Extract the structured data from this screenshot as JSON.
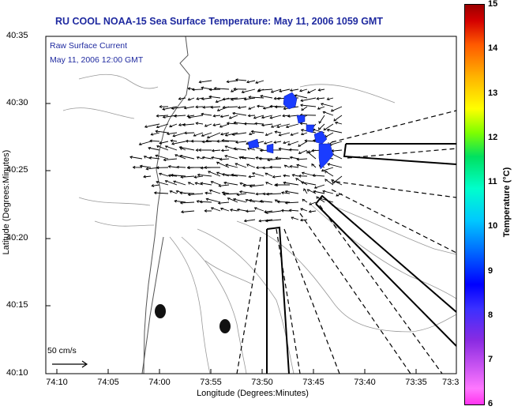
{
  "title": "RU COOL  NOAA-15  Sea Surface Temperature:  May 11, 2006 1059 GMT",
  "annotation": {
    "line1": "Raw Surface Current",
    "line2": "May 11, 2006 12:00 GMT"
  },
  "scale_label": "50 cm/s",
  "axes": {
    "xlabel": "Longitude (Degrees:Minutes)",
    "ylabel": "Latitude (Degrees:Minutes)",
    "x_ticks": [
      "74:10",
      "74:05",
      "74:00",
      "73:55",
      "73:50",
      "73:45",
      "73:40",
      "73:35",
      "73:3"
    ],
    "y_ticks": [
      "40:35",
      "40:30",
      "40:25",
      "40:20",
      "40:15",
      "40:10"
    ]
  },
  "colorbar": {
    "label": "Temperature (°C)",
    "ticks": [
      "15",
      "14",
      "13",
      "12",
      "11",
      "10",
      "9",
      "8",
      "7",
      "6"
    ],
    "range": [
      6,
      15
    ]
  },
  "colors": {
    "title": "#1f2aa0",
    "sst_patch": "#1a3cff"
  }
}
